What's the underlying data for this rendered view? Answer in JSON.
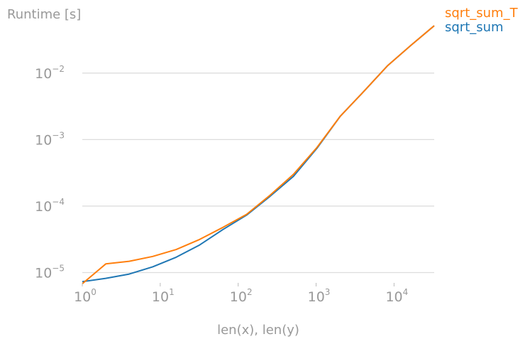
{
  "chart_data": {
    "type": "line",
    "title": "",
    "ylabel": "Runtime [s]",
    "xlabel": "len(x), len(y)",
    "xscale": "log",
    "yscale": "log",
    "xlim": [
      1,
      32768
    ],
    "ylim": [
      7e-06,
      0.06
    ],
    "grid": "horizontal",
    "legend_position": "top-right",
    "x": [
      1,
      2,
      4,
      8,
      16,
      32,
      64,
      128,
      256,
      512,
      1024,
      2048,
      4096,
      8192,
      16384,
      32768
    ],
    "series": [
      {
        "name": "sqrt_sum_T",
        "color": "#ff7f0e",
        "values": [
          6.8e-06,
          1.35e-05,
          1.48e-05,
          1.75e-05,
          2.22e-05,
          3.15e-05,
          4.8e-05,
          7.5e-05,
          0.000145,
          0.0003,
          0.00076,
          0.00225,
          0.0053,
          0.0128,
          0.026,
          0.0515
        ]
      },
      {
        "name": "sqrt_sum",
        "color": "#1f77b4",
        "values": [
          7.3e-06,
          8.2e-06,
          9.5e-06,
          1.22e-05,
          1.7e-05,
          2.6e-05,
          4.45e-05,
          7.3e-05,
          0.00014,
          0.00028,
          0.00074,
          0.00225,
          0.0053,
          0.0128,
          0.026,
          0.0515
        ]
      }
    ],
    "yticks": [
      {
        "value": 1e-05,
        "base": "10",
        "exp": "−5"
      },
      {
        "value": 0.0001,
        "base": "10",
        "exp": "−4"
      },
      {
        "value": 0.001,
        "base": "10",
        "exp": "−3"
      },
      {
        "value": 0.01,
        "base": "10",
        "exp": "−2"
      }
    ],
    "xticks": [
      {
        "value": 1,
        "base": "10",
        "exp": "0"
      },
      {
        "value": 10,
        "base": "10",
        "exp": "1"
      },
      {
        "value": 100,
        "base": "10",
        "exp": "2"
      },
      {
        "value": 1000,
        "base": "10",
        "exp": "3"
      },
      {
        "value": 10000,
        "base": "10",
        "exp": "4"
      }
    ]
  }
}
